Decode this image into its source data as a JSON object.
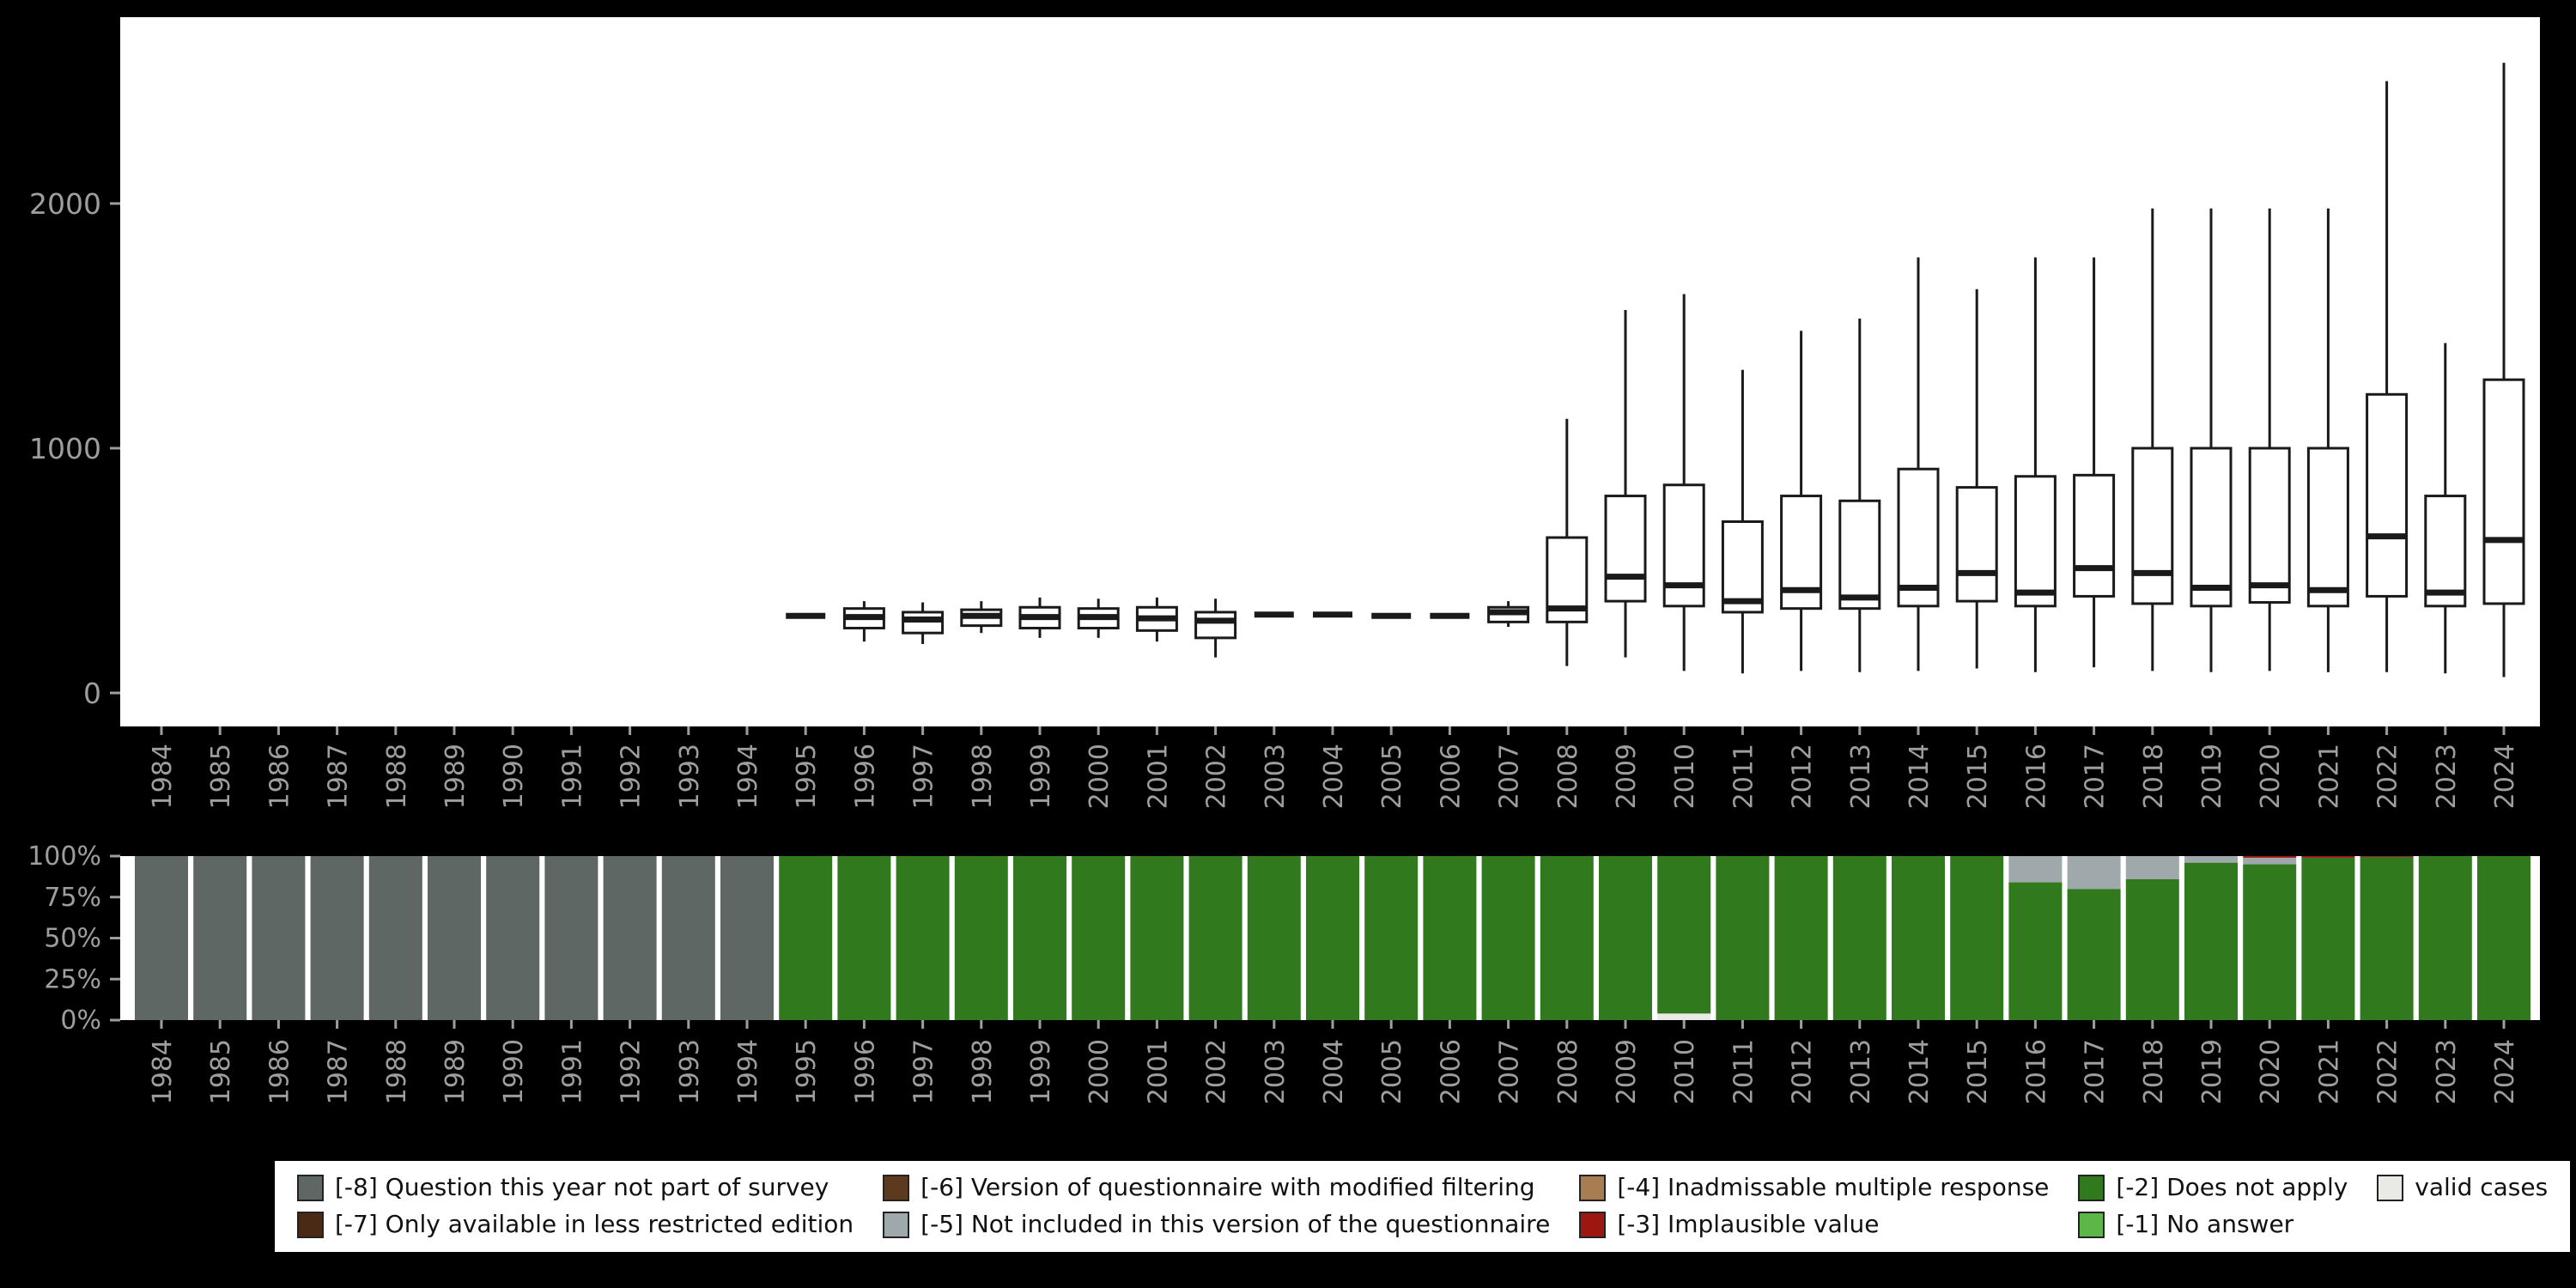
{
  "page": {
    "background": "#000000",
    "panel_background": "#ffffff",
    "axis_text_color": "#9e9e9e"
  },
  "chart_data": [
    {
      "type": "boxplot",
      "title": "",
      "xlabel": "",
      "ylabel": "",
      "yticks": [
        0,
        1000,
        2000
      ],
      "ylim": [
        0,
        2700
      ],
      "categories": [
        "1984",
        "1985",
        "1986",
        "1987",
        "1988",
        "1989",
        "1990",
        "1991",
        "1992",
        "1993",
        "1994",
        "1995",
        "1996",
        "1997",
        "1998",
        "1999",
        "2000",
        "2001",
        "2002",
        "2003",
        "2004",
        "2005",
        "2006",
        "2007",
        "2008",
        "2009",
        "2010",
        "2011",
        "2012",
        "2013",
        "2014",
        "2015",
        "2016",
        "2017",
        "2018",
        "2019",
        "2020",
        "2021",
        "2022",
        "2023",
        "2024"
      ],
      "boxes": [
        null,
        null,
        null,
        null,
        null,
        null,
        null,
        null,
        null,
        null,
        null,
        {
          "min": 315,
          "q1": 315,
          "med": 315,
          "q3": 315,
          "max": 315
        },
        {
          "min": 210,
          "q1": 265,
          "med": 310,
          "q3": 345,
          "max": 375
        },
        {
          "min": 200,
          "q1": 245,
          "med": 300,
          "q3": 330,
          "max": 370
        },
        {
          "min": 245,
          "q1": 275,
          "med": 315,
          "q3": 340,
          "max": 375
        },
        {
          "min": 225,
          "q1": 265,
          "med": 310,
          "q3": 350,
          "max": 390
        },
        {
          "min": 225,
          "q1": 265,
          "med": 310,
          "q3": 345,
          "max": 385
        },
        {
          "min": 210,
          "q1": 255,
          "med": 305,
          "q3": 350,
          "max": 390
        },
        {
          "min": 145,
          "q1": 225,
          "med": 295,
          "q3": 330,
          "max": 385
        },
        {
          "min": 320,
          "q1": 320,
          "med": 320,
          "q3": 320,
          "max": 320
        },
        {
          "min": 320,
          "q1": 320,
          "med": 320,
          "q3": 320,
          "max": 320
        },
        {
          "min": 315,
          "q1": 315,
          "med": 315,
          "q3": 315,
          "max": 315
        },
        {
          "min": 315,
          "q1": 315,
          "med": 315,
          "q3": 315,
          "max": 315
        },
        {
          "min": 270,
          "q1": 290,
          "med": 330,
          "q3": 350,
          "max": 375
        },
        {
          "min": 110,
          "q1": 290,
          "med": 345,
          "q3": 635,
          "max": 1120
        },
        {
          "min": 145,
          "q1": 375,
          "med": 475,
          "q3": 805,
          "max": 1565
        },
        {
          "min": 90,
          "q1": 355,
          "med": 440,
          "q3": 850,
          "max": 1630
        },
        {
          "min": 80,
          "q1": 330,
          "med": 375,
          "q3": 700,
          "max": 1320
        },
        {
          "min": 90,
          "q1": 345,
          "med": 420,
          "q3": 805,
          "max": 1480
        },
        {
          "min": 85,
          "q1": 345,
          "med": 390,
          "q3": 785,
          "max": 1530
        },
        {
          "min": 90,
          "q1": 355,
          "med": 430,
          "q3": 915,
          "max": 1780
        },
        {
          "min": 100,
          "q1": 375,
          "med": 490,
          "q3": 840,
          "max": 1650
        },
        {
          "min": 85,
          "q1": 355,
          "med": 410,
          "q3": 885,
          "max": 1780
        },
        {
          "min": 105,
          "q1": 395,
          "med": 510,
          "q3": 890,
          "max": 1780
        },
        {
          "min": 90,
          "q1": 365,
          "med": 490,
          "q3": 1000,
          "max": 1980
        },
        {
          "min": 85,
          "q1": 355,
          "med": 430,
          "q3": 1000,
          "max": 1980
        },
        {
          "min": 90,
          "q1": 370,
          "med": 440,
          "q3": 1000,
          "max": 1980
        },
        {
          "min": 85,
          "q1": 355,
          "med": 420,
          "q3": 1000,
          "max": 1980
        },
        {
          "min": 85,
          "q1": 395,
          "med": 640,
          "q3": 1220,
          "max": 2500
        },
        {
          "min": 80,
          "q1": 355,
          "med": 410,
          "q3": 805,
          "max": 1430
        },
        {
          "min": 65,
          "q1": 365,
          "med": 625,
          "q3": 1280,
          "max": 2575
        }
      ]
    },
    {
      "type": "stacked-bar-percent",
      "title": "",
      "xlabel": "",
      "ylabel": "",
      "yticks": [
        {
          "v": 100,
          "label": "100%"
        },
        {
          "v": 75,
          "label": "75%"
        },
        {
          "v": 50,
          "label": "50%"
        },
        {
          "v": 25,
          "label": "25%"
        },
        {
          "v": 0,
          "label": "0%"
        }
      ],
      "categories": [
        "1984",
        "1985",
        "1986",
        "1987",
        "1988",
        "1989",
        "1990",
        "1991",
        "1992",
        "1993",
        "1994",
        "1995",
        "1996",
        "1997",
        "1998",
        "1999",
        "2000",
        "2001",
        "2002",
        "2003",
        "2004",
        "2005",
        "2006",
        "2007",
        "2008",
        "2009",
        "2010",
        "2011",
        "2012",
        "2013",
        "2014",
        "2015",
        "2016",
        "2017",
        "2018",
        "2019",
        "2020",
        "2021",
        "2022",
        "2023",
        "2024"
      ],
      "segment_colors": {
        "-8": "#5e6763",
        "-7": "#4a2a15",
        "-6": "#5d3a1f",
        "-5": "#9fa8ab",
        "-4": "#a87d52",
        "-3": "#9c1710",
        "-2": "#30791c",
        "-1": "#5cb648",
        "valid": "#e9e9e6"
      },
      "bars": [
        [
          [
            "-8",
            100
          ]
        ],
        [
          [
            "-8",
            100
          ]
        ],
        [
          [
            "-8",
            100
          ]
        ],
        [
          [
            "-8",
            100
          ]
        ],
        [
          [
            "-8",
            100
          ]
        ],
        [
          [
            "-8",
            100
          ]
        ],
        [
          [
            "-8",
            100
          ]
        ],
        [
          [
            "-8",
            100
          ]
        ],
        [
          [
            "-8",
            100
          ]
        ],
        [
          [
            "-8",
            100
          ]
        ],
        [
          [
            "-8",
            100
          ]
        ],
        [
          [
            "-2",
            100
          ]
        ],
        [
          [
            "-2",
            100
          ]
        ],
        [
          [
            "-2",
            100
          ]
        ],
        [
          [
            "-2",
            100
          ]
        ],
        [
          [
            "-2",
            100
          ]
        ],
        [
          [
            "-2",
            100
          ]
        ],
        [
          [
            "-2",
            100
          ]
        ],
        [
          [
            "-2",
            100
          ]
        ],
        [
          [
            "-2",
            100
          ]
        ],
        [
          [
            "-2",
            100
          ]
        ],
        [
          [
            "-2",
            100
          ]
        ],
        [
          [
            "-2",
            100
          ]
        ],
        [
          [
            "-2",
            100
          ]
        ],
        [
          [
            "-2",
            100
          ]
        ],
        [
          [
            "-2",
            100
          ]
        ],
        [
          [
            "valid",
            4
          ],
          [
            "-2",
            96
          ]
        ],
        [
          [
            "-2",
            100
          ]
        ],
        [
          [
            "-2",
            100
          ]
        ],
        [
          [
            "-2",
            100
          ]
        ],
        [
          [
            "-2",
            100
          ]
        ],
        [
          [
            "-2",
            100
          ]
        ],
        [
          [
            "-2",
            84
          ],
          [
            "-5",
            16
          ]
        ],
        [
          [
            "-2",
            80
          ],
          [
            "-5",
            20
          ]
        ],
        [
          [
            "-2",
            86
          ],
          [
            "-5",
            14
          ]
        ],
        [
          [
            "-2",
            96
          ],
          [
            "-5",
            4
          ]
        ],
        [
          [
            "-2",
            95
          ],
          [
            "-5",
            4
          ],
          [
            "-3",
            1
          ]
        ],
        [
          [
            "-2",
            99
          ],
          [
            "-3",
            1
          ]
        ],
        [
          [
            "-2",
            99.5
          ],
          [
            "-3",
            0.5
          ]
        ],
        [
          [
            "-2",
            100
          ]
        ],
        [
          [
            "-2",
            100
          ]
        ]
      ]
    }
  ],
  "legend": {
    "items": [
      {
        "code": "-8",
        "label": "[-8] Question this year not part of survey",
        "color": "#5e6763"
      },
      {
        "code": "-6",
        "label": "[-6] Version of questionnaire with modified filtering",
        "color": "#5d3a1f"
      },
      {
        "code": "-4",
        "label": "[-4] Inadmissable multiple response",
        "color": "#a87d52"
      },
      {
        "code": "-2",
        "label": "[-2] Does not apply",
        "color": "#30791c"
      },
      {
        "code": "valid",
        "label": "valid cases",
        "color": "#e9e9e6"
      },
      {
        "code": "-7",
        "label": "[-7] Only available in less restricted edition",
        "color": "#4a2a15"
      },
      {
        "code": "-5",
        "label": "[-5] Not included in this version of the questionnaire",
        "color": "#9fa8ab"
      },
      {
        "code": "-3",
        "label": "[-3] Implausible value",
        "color": "#9c1710"
      },
      {
        "code": "-1",
        "label": "[-1] No answer",
        "color": "#5cb648"
      }
    ]
  }
}
